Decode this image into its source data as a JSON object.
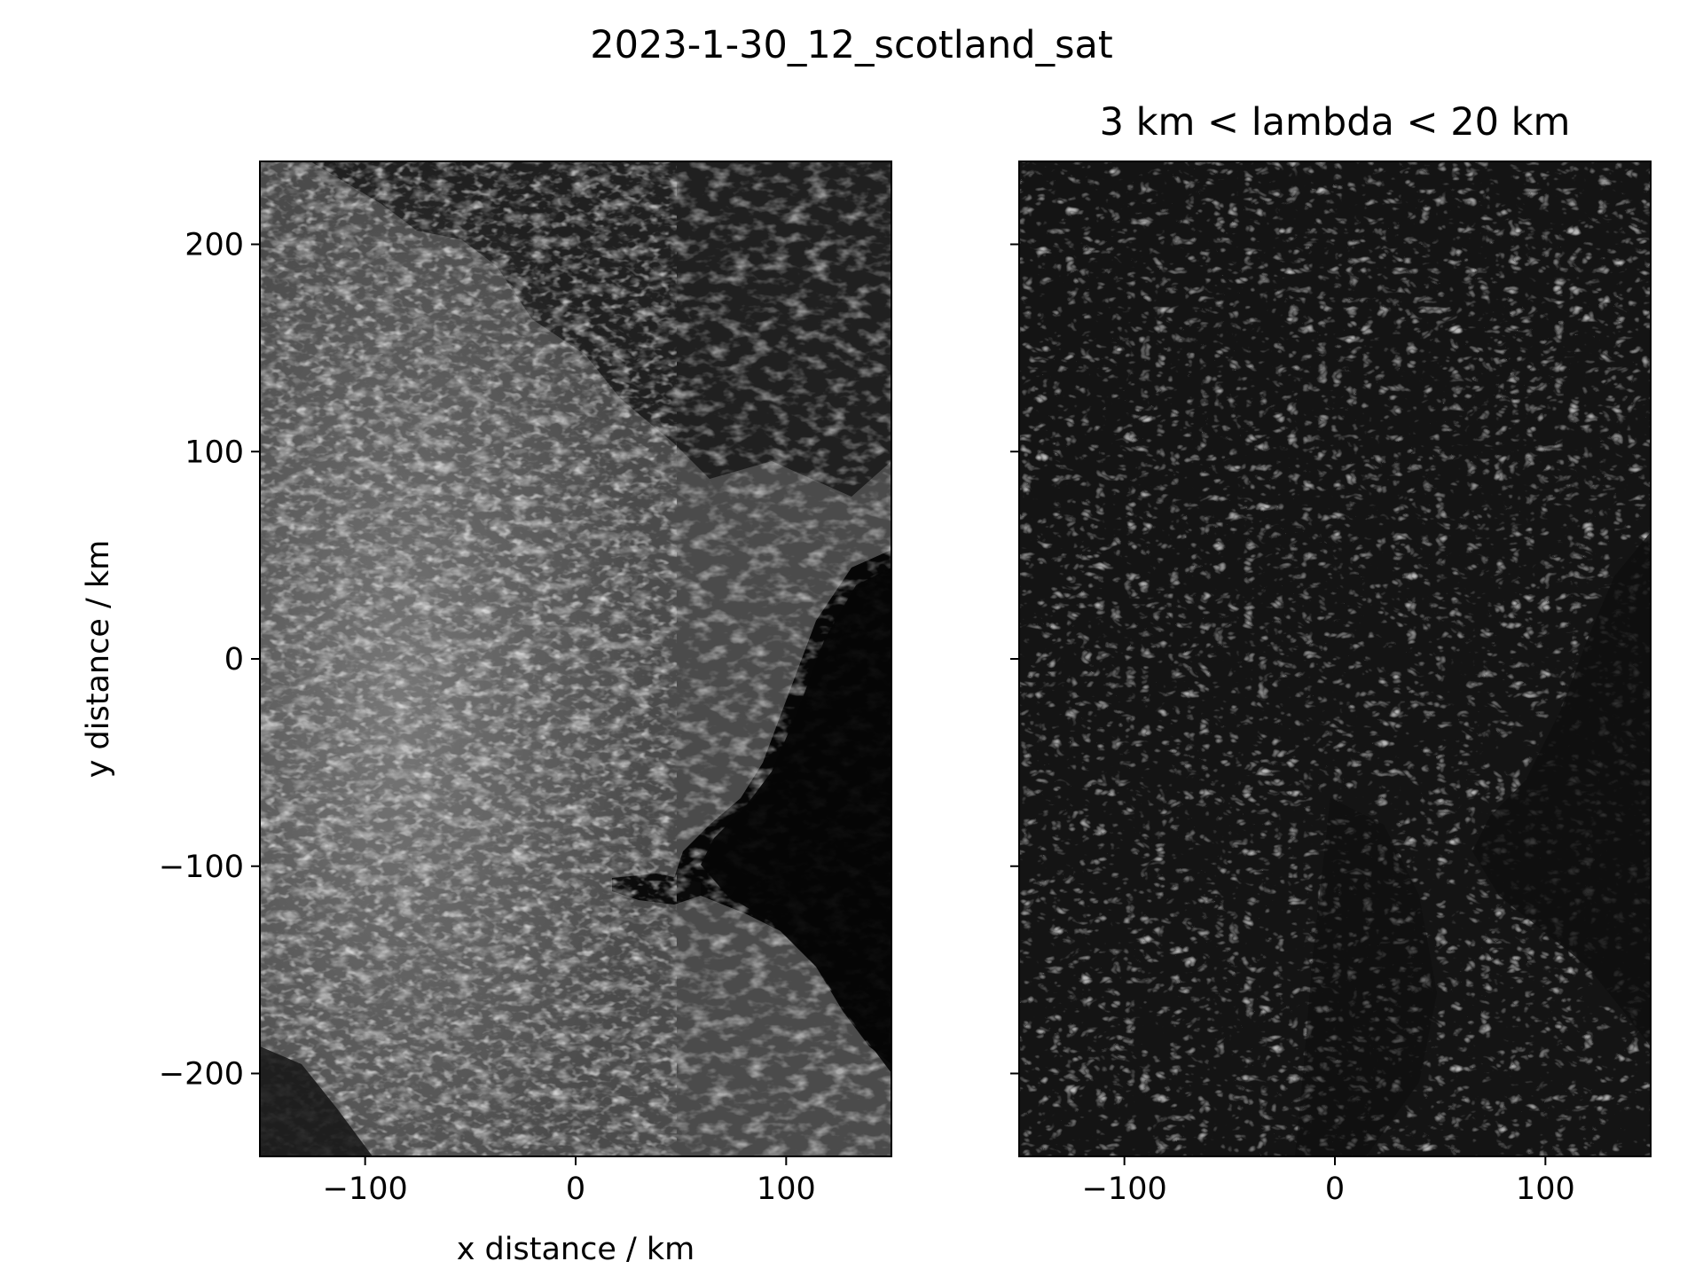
{
  "figure": {
    "suptitle": "2023-1-30_12_scotland_sat"
  },
  "chart_data": [
    {
      "type": "heatmap",
      "name": "satellite-image",
      "title": "",
      "xlabel": "x distance / km",
      "ylabel": "y distance / km",
      "xlim": [
        -150,
        150
      ],
      "ylim": [
        -240,
        240
      ],
      "x_ticks": [
        {
          "value": -100,
          "label": "−100"
        },
        {
          "value": 0,
          "label": "0"
        },
        {
          "value": 100,
          "label": "100"
        }
      ],
      "y_ticks": [
        {
          "value": 200,
          "label": "200"
        },
        {
          "value": 100,
          "label": "100"
        },
        {
          "value": 0,
          "label": "0"
        },
        {
          "value": -100,
          "label": "−100"
        },
        {
          "value": -200,
          "label": "−200"
        }
      ],
      "colormap": "greyscale"
    },
    {
      "type": "heatmap",
      "name": "bandpass-filtered-image",
      "title": "3 km < lambda < 20 km",
      "xlabel": "",
      "ylabel": "",
      "xlim": [
        -150,
        150
      ],
      "ylim": [
        -240,
        240
      ],
      "x_ticks": [
        {
          "value": -100,
          "label": "−100"
        },
        {
          "value": 0,
          "label": "0"
        },
        {
          "value": 100,
          "label": "100"
        }
      ],
      "y_ticks": [
        {
          "value": 200,
          "label": ""
        },
        {
          "value": 100,
          "label": ""
        },
        {
          "value": 0,
          "label": ""
        },
        {
          "value": -100,
          "label": ""
        },
        {
          "value": -200,
          "label": ""
        }
      ],
      "colormap": "greyscale"
    }
  ],
  "colors": {
    "frame": "#000000",
    "background": "#ffffff",
    "land": "#4a4a4a",
    "sea": "#050505",
    "cloud": "#bdbdbd",
    "filtered_base": "#141414",
    "filtered_bright": "#9a9a9a"
  }
}
